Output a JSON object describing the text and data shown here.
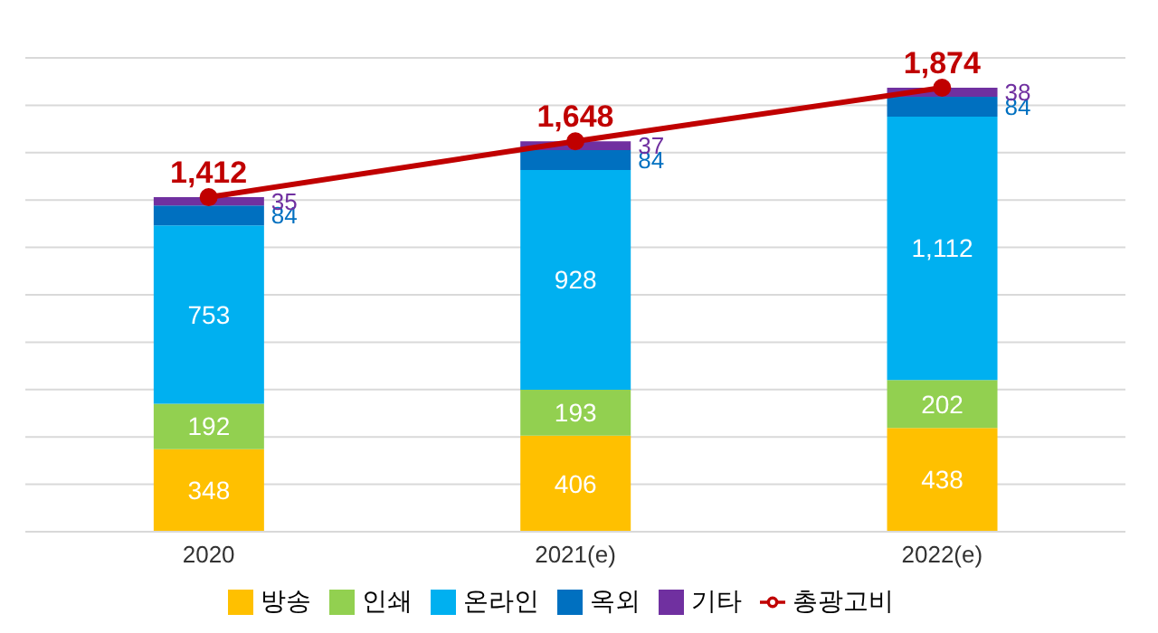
{
  "chart_data": {
    "type": "bar",
    "stacked": true,
    "categories": [
      "2020",
      "2021(e)",
      "2022(e)"
    ],
    "series": [
      {
        "name": "방송",
        "color": "#ffc000",
        "values": [
          348,
          406,
          438
        ],
        "value_labels": [
          "348",
          "406",
          "438"
        ]
      },
      {
        "name": "인쇄",
        "color": "#92d050",
        "values": [
          192,
          193,
          202
        ],
        "value_labels": [
          "192",
          "193",
          "202"
        ]
      },
      {
        "name": "온라인",
        "color": "#00b0f0",
        "values": [
          753,
          928,
          1112
        ],
        "value_labels": [
          "753",
          "928",
          "1,112"
        ]
      },
      {
        "name": "옥외",
        "color": "#0070c0",
        "values": [
          84,
          84,
          84
        ],
        "value_labels": [
          "84",
          "84",
          "84"
        ]
      },
      {
        "name": "기타",
        "color": "#7030a0",
        "values": [
          35,
          37,
          38
        ],
        "value_labels": [
          "35",
          "37",
          "38"
        ]
      },
      {
        "name": "총광고비",
        "type": "line",
        "color": "#c00000",
        "values": [
          1412,
          1648,
          1874
        ],
        "value_labels": [
          "1,412",
          "1,648",
          "1,874"
        ],
        "marker": "circle"
      }
    ],
    "ylim": [
      0,
      2000
    ],
    "yticks": [
      {
        "value": 0,
        "label": null
      },
      {
        "value": 200,
        "label": null
      },
      {
        "value": 400,
        "label": null
      },
      {
        "value": 600,
        "label": null
      },
      {
        "value": 800,
        "label": null
      },
      {
        "value": 1000,
        "label": null
      },
      {
        "value": 1200,
        "label": null
      },
      {
        "value": 1400,
        "label": null
      },
      {
        "value": 1600,
        "label": null
      },
      {
        "value": 1800,
        "label": null
      },
      {
        "value": 2000,
        "label": null
      }
    ],
    "grid": "y",
    "legend": "bottom"
  }
}
